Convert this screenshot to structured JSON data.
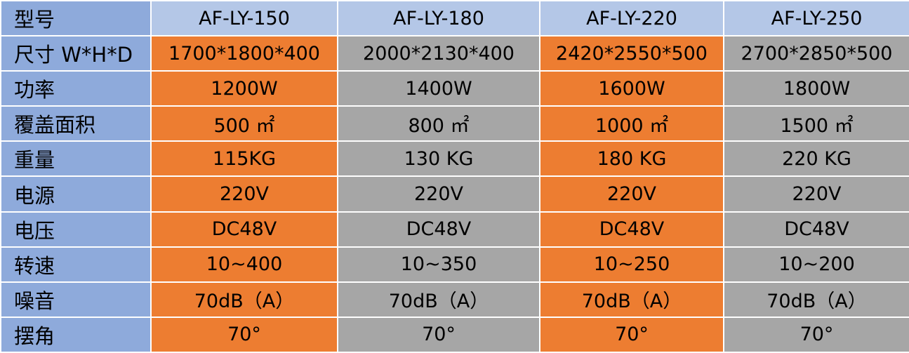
{
  "table": {
    "header_label": "型号",
    "models": [
      "AF-LY-150",
      "AF-LY-180",
      "AF-LY-220",
      "AF-LY-250"
    ],
    "rows": [
      {
        "label": "尺寸 W*H*D",
        "values": [
          "1700*1800*400",
          "2000*2130*400",
          "2420*2550*500",
          "2700*2850*500"
        ]
      },
      {
        "label": "功率",
        "values": [
          "1200W",
          "1400W",
          "1600W",
          "1800W"
        ]
      },
      {
        "label": "覆盖面积",
        "values": [
          "500 ㎡",
          "800 ㎡",
          "1000 ㎡",
          "1500 ㎡"
        ]
      },
      {
        "label": "重量",
        "values": [
          "115KG",
          "130 KG",
          "180 KG",
          "220 KG"
        ]
      },
      {
        "label": "电源",
        "values": [
          "220V",
          "220V",
          "220V",
          "220V"
        ]
      },
      {
        "label": "电压",
        "values": [
          "DC48V",
          "DC48V",
          "DC48V",
          "DC48V"
        ]
      },
      {
        "label": "转速",
        "values": [
          "10~400",
          "10~350",
          "10~250",
          "10~200"
        ]
      },
      {
        "label": "噪音",
        "values": [
          "70dB（A）",
          "70dB（A）",
          "70dB（A）",
          "70dB（A）"
        ]
      },
      {
        "label": "摆角",
        "values": [
          "70°",
          "70°",
          "70°",
          "70°"
        ]
      }
    ]
  },
  "colors": {
    "label_column": "#8eaadb",
    "header_row": "#b4c7e7",
    "highlight_column": "#ed7d31",
    "alternate_column": "#a6a6a6",
    "border": "#ffffff"
  }
}
